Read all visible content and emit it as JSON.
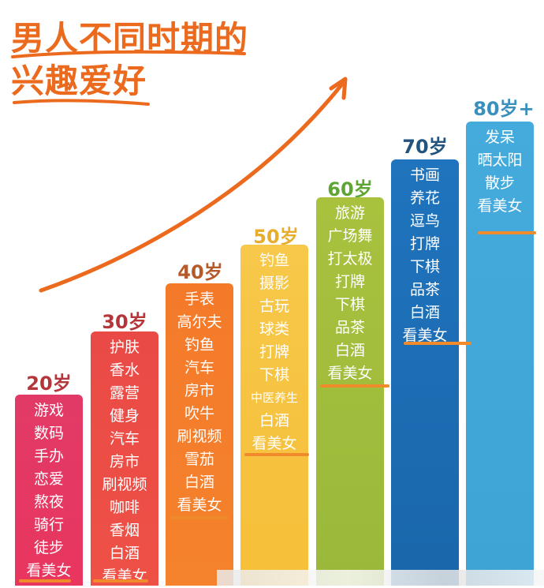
{
  "title": {
    "line1": "男人不同时期的",
    "line2": "兴趣爱好"
  },
  "colors": {
    "title": "#ec6a1e",
    "col20": "#e8365f",
    "col30": "#ee5146",
    "col40": "#f5822d",
    "col50": "#f6bf38",
    "col60": "#9ab83a",
    "col70": "#1d6fb8",
    "col80": "#3ea3d5"
  },
  "columns": [
    {
      "age": "20岁",
      "items": [
        "游戏",
        "数码",
        "手办",
        "恋爱",
        "熬夜",
        "骑行",
        "徒步",
        "看美女"
      ]
    },
    {
      "age": "30岁",
      "items": [
        "护肤",
        "香水",
        "露营",
        "健身",
        "汽车",
        "房市",
        "刷视频",
        "咖啡",
        "香烟",
        "白酒",
        "看美女"
      ]
    },
    {
      "age": "40岁",
      "items": [
        "手表",
        "高尔夫",
        "钓鱼",
        "汽车",
        "房市",
        "吹牛",
        "刷视频",
        "雪茄",
        "白酒",
        "看美女"
      ]
    },
    {
      "age": "50岁",
      "items": [
        "钓鱼",
        "摄影",
        "古玩",
        "球类",
        "打牌",
        "下棋",
        "中医养生",
        "白酒",
        "看美女"
      ]
    },
    {
      "age": "60岁",
      "items": [
        "旅游",
        "广场舞",
        "打太极",
        "打牌",
        "下棋",
        "品茶",
        "白酒",
        "看美女"
      ]
    },
    {
      "age": "70岁",
      "items": [
        "书画",
        "养花",
        "逗鸟",
        "打牌",
        "下棋",
        "品茶",
        "白酒",
        "看美女"
      ]
    },
    {
      "age": "80岁+",
      "items": [
        "发呆",
        "晒太阳",
        "散步",
        "看美女"
      ]
    }
  ]
}
